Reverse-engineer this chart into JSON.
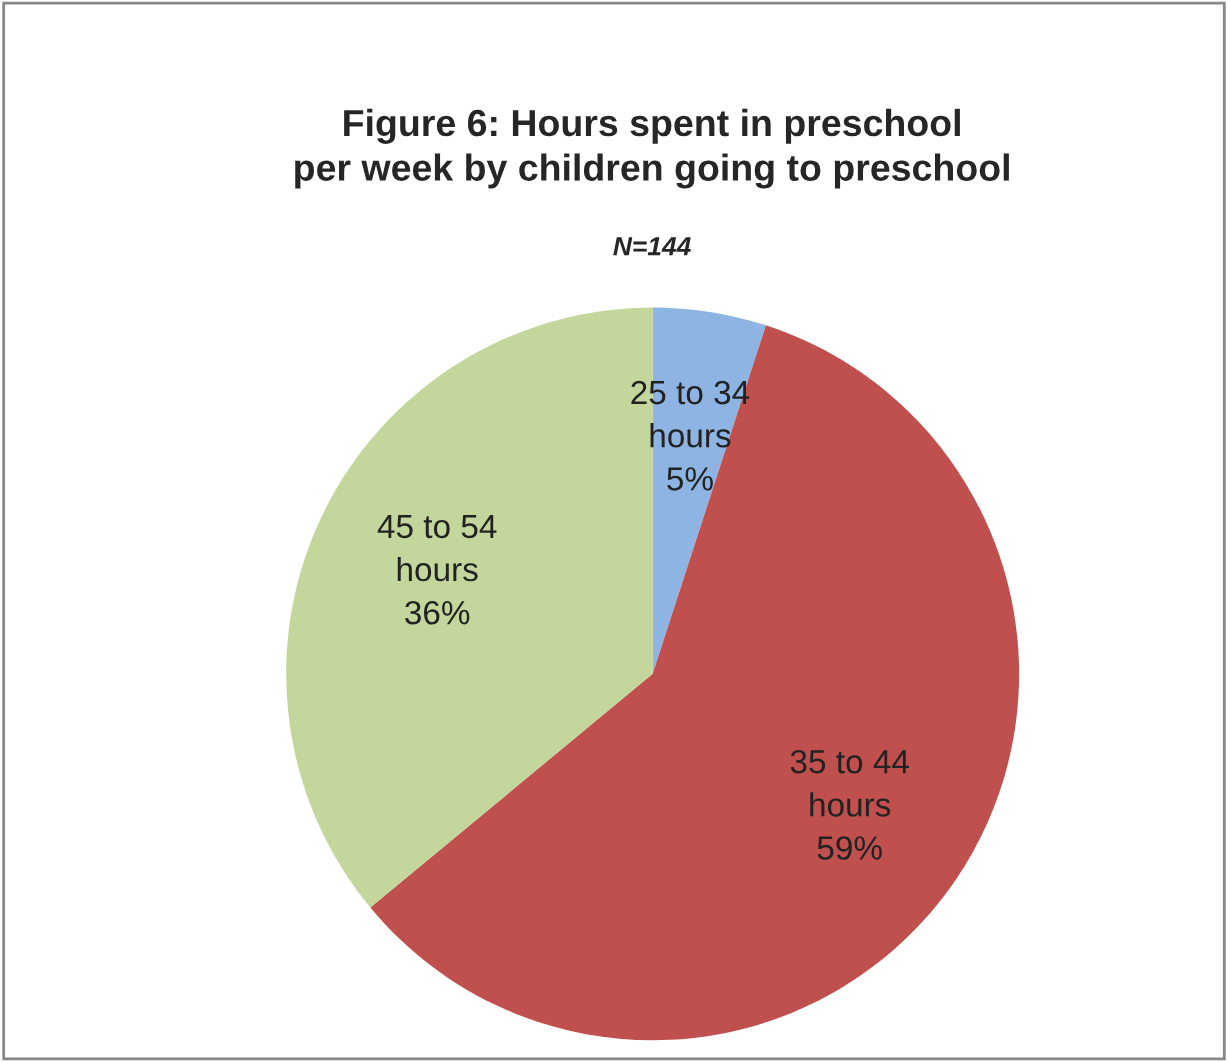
{
  "chart_data": {
    "type": "pie",
    "title": "Figure 6: Hours spent in preschool\nper week by children going to preschool",
    "subtitle": "N=144",
    "categories": [
      "25 to 34\nhours",
      "35 to 44\nhours",
      "45 to 54\nhours"
    ],
    "values": [
      5,
      59,
      36
    ],
    "value_labels": [
      "5%",
      "59%",
      "36%"
    ],
    "colors": [
      "#8eb4e3",
      "#c0504d",
      "#c3d69b"
    ]
  }
}
